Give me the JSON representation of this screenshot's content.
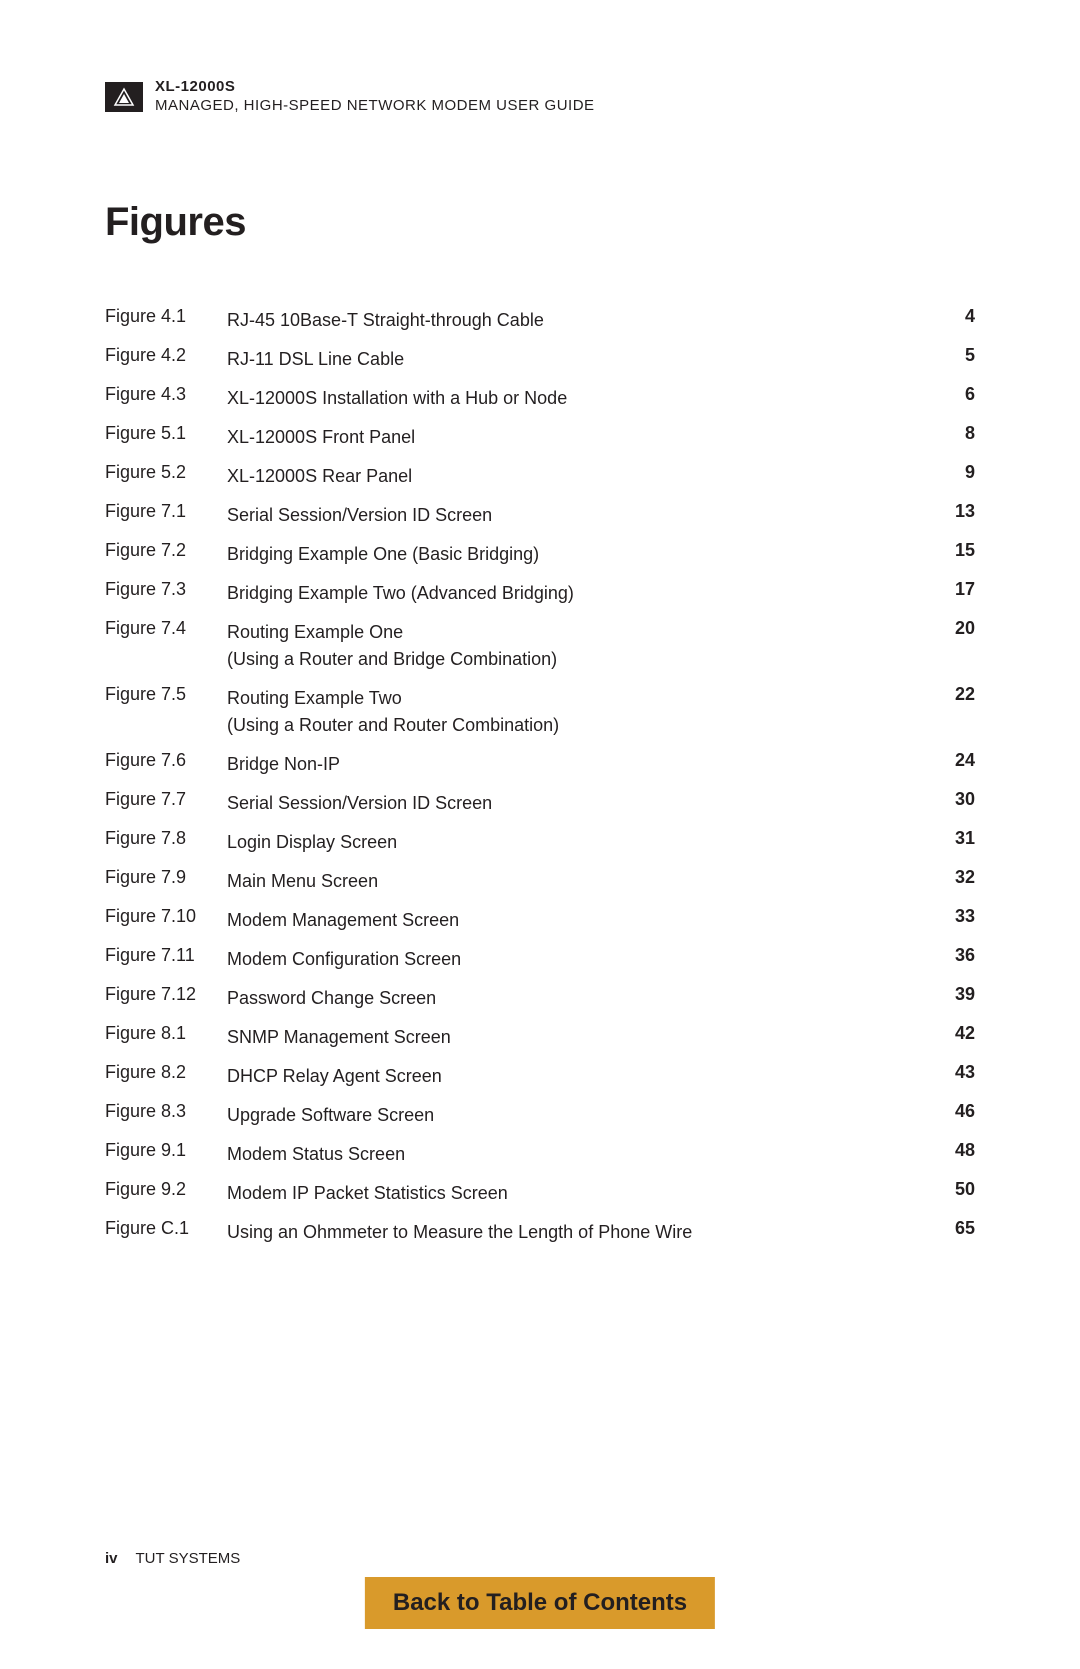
{
  "header": {
    "model": "XL-12000S",
    "subtitle": "MANAGED, HIGH-SPEED NETWORK MODEM USER GUIDE",
    "logo": {
      "bg_color": "#231f20",
      "icon_color": "#ffffff"
    }
  },
  "section_title": "Figures",
  "text_color": "#231f20",
  "background_color": "#ffffff",
  "fontsize_body": 18,
  "fontsize_title": 40,
  "figures": [
    {
      "label": "Figure 4.1",
      "desc": "RJ-45 10Base-T Straight-through Cable",
      "page": "4"
    },
    {
      "label": "Figure 4.2",
      "desc": "RJ-11 DSL Line Cable",
      "page": "5"
    },
    {
      "label": "Figure 4.3",
      "desc": "XL-12000S Installation with a Hub or Node",
      "page": "6"
    },
    {
      "label": "Figure 5.1",
      "desc": "XL-12000S Front Panel",
      "page": "8"
    },
    {
      "label": "Figure 5.2",
      "desc": "XL-12000S Rear Panel",
      "page": "9"
    },
    {
      "label": "Figure 7.1",
      "desc": "Serial Session/Version ID Screen",
      "page": "13"
    },
    {
      "label": "Figure 7.2",
      "desc": "Bridging Example One (Basic Bridging)",
      "page": "15"
    },
    {
      "label": "Figure 7.3",
      "desc": "Bridging Example Two (Advanced Bridging)",
      "page": "17"
    },
    {
      "label": "Figure 7.4",
      "desc": "Routing Example One\n(Using a Router and Bridge Combination)",
      "page": "20"
    },
    {
      "label": "Figure 7.5",
      "desc": "Routing Example Two\n(Using a Router and Router Combination)",
      "page": "22"
    },
    {
      "label": "Figure 7.6",
      "desc": "Bridge Non-IP",
      "page": "24"
    },
    {
      "label": "Figure 7.7",
      "desc": "Serial Session/Version ID Screen",
      "page": "30"
    },
    {
      "label": "Figure 7.8",
      "desc": "Login Display Screen",
      "page": "31"
    },
    {
      "label": "Figure 7.9",
      "desc": "Main Menu Screen",
      "page": "32"
    },
    {
      "label": "Figure 7.10",
      "desc": "Modem Management Screen",
      "page": "33"
    },
    {
      "label": "Figure 7.11",
      "desc": "Modem Configuration Screen",
      "page": "36"
    },
    {
      "label": "Figure 7.12",
      "desc": "Password Change Screen",
      "page": "39"
    },
    {
      "label": "Figure 8.1",
      "desc": "SNMP Management Screen",
      "page": "42"
    },
    {
      "label": "Figure 8.2",
      "desc": "DHCP Relay Agent Screen",
      "page": "43"
    },
    {
      "label": "Figure 8.3",
      "desc": "Upgrade Software Screen",
      "page": "46"
    },
    {
      "label": "Figure 9.1",
      "desc": "Modem Status Screen",
      "page": "48"
    },
    {
      "label": "Figure 9.2",
      "desc": "Modem IP Packet Statistics Screen",
      "page": "50"
    },
    {
      "label": "Figure C.1",
      "desc": "Using an Ohmmeter to Measure the Length of Phone Wire",
      "page": "65"
    }
  ],
  "footer": {
    "page_roman": "iv",
    "company": "TUT SYSTEMS",
    "back_link": {
      "label": "Back to Table of Contents",
      "bg_color": "#d99a2b",
      "text_color": "#231f20"
    }
  }
}
